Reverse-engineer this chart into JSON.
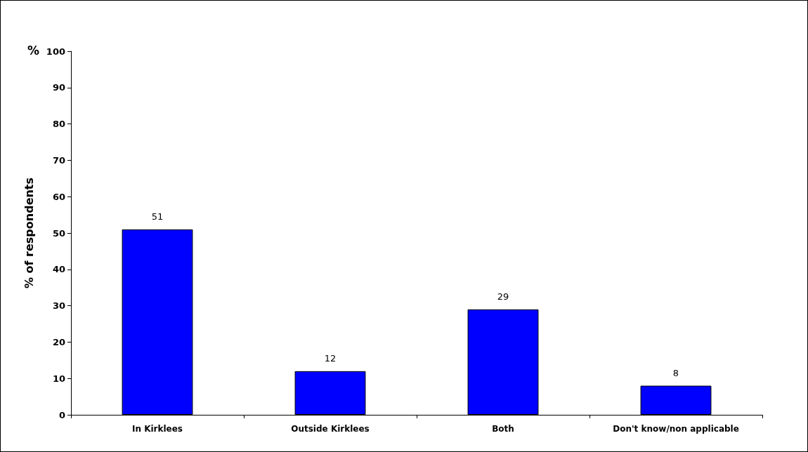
{
  "chart_data": {
    "type": "bar",
    "ylabel": "% of respondents",
    "annotations": [
      "%"
    ],
    "categories": [
      "In Kirklees",
      "Outside Kirklees",
      "Both",
      "Don't know/non applicable"
    ],
    "values": [
      51,
      12,
      29,
      8
    ],
    "color": "#0000ff",
    "ylim": [
      0,
      100
    ],
    "yticks": [
      0,
      10,
      20,
      30,
      40,
      50,
      60,
      70,
      80,
      90,
      100
    ],
    "grid": false,
    "data_labels": true
  }
}
